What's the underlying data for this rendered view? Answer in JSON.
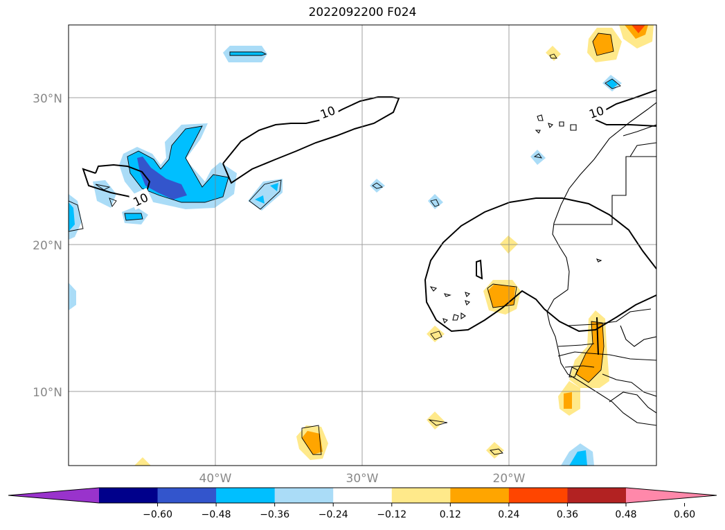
{
  "title": "2022092200 F024",
  "lat_labels": [
    "30°N",
    "20°N",
    "10°N"
  ],
  "lon_labels": [
    "40°W",
    "30°W",
    "20°W"
  ],
  "contour_labels": [
    "10",
    "10",
    "10"
  ],
  "colorbar": {
    "ticks": [
      "−0.60",
      "−0.48",
      "−0.36",
      "−0.24",
      "−0.12",
      "0.12",
      "0.24",
      "0.36",
      "0.48",
      "0.60"
    ],
    "colors": [
      "#9933cc",
      "#00008b",
      "#3355cc",
      "#00bfff",
      "#aadcf7",
      "#ffffff",
      "#ffe98a",
      "#ffa500",
      "#ff4500",
      "#b22222",
      "#ff88aa"
    ]
  }
}
